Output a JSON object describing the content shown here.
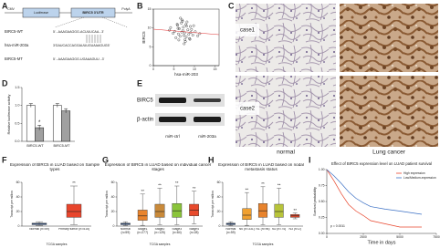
{
  "panel_labels": [
    "A",
    "B",
    "C",
    "D",
    "E",
    "F",
    "G",
    "H",
    "I"
  ],
  "construct": {
    "left": "CMV",
    "box1": "Luciferase",
    "box2": "BIRC5 3'UTR",
    "right": "PolyA",
    "rows": [
      {
        "name": "BIRC5-WT",
        "seq": "5'...AAAGAAGGG-ACUUUCAA...3'"
      },
      {
        "name": "hsa-miR-203a",
        "seq": "3'GAUCACCAGGAUUUGUAAAGUG5'"
      },
      {
        "name": "BIRC5-MT",
        "seq": "5'...AAAGAAGGG-UGAAAGUU...3'"
      }
    ]
  },
  "scatter": {
    "x_label": "hsa-miR-203",
    "y_label": "BIRC5",
    "xlim": [
      0,
      16
    ],
    "ylim": [
      0,
      15
    ],
    "xticks": [
      0,
      5,
      10,
      15
    ],
    "yticks": [
      0,
      5,
      10,
      15
    ],
    "x": [
      5.2,
      6.1,
      7.3,
      8.0,
      6.8,
      9.1,
      7.7,
      5.9,
      8.4,
      6.5,
      7.0,
      9.6,
      10.2,
      4.8,
      7.9,
      8.8,
      6.3,
      7.5,
      9.0,
      5.5,
      8.2,
      6.9,
      7.2,
      10.8,
      4.2,
      8.6,
      7.8,
      6.6,
      9.3,
      5.8,
      7.4,
      8.1,
      6.2,
      11.3,
      3.9,
      7.1,
      8.9,
      6.0,
      9.8,
      7.6
    ],
    "y": [
      9.1,
      8.4,
      10.2,
      7.6,
      11.3,
      8.8,
      6.9,
      10.7,
      9.5,
      7.8,
      12.1,
      8.1,
      9.0,
      8.6,
      10.9,
      7.2,
      9.8,
      5.8,
      10.4,
      7.4,
      11.6,
      8.9,
      9.3,
      7.9,
      10.1,
      8.3,
      6.4,
      12.6,
      9.6,
      11.0,
      8.0,
      10.5,
      6.8,
      8.5,
      9.4,
      11.8,
      7.0,
      9.9,
      10.6,
      8.7
    ]
  },
  "ihc": {
    "rows": [
      "case1",
      "case2"
    ],
    "cols": [
      "normal",
      "Lung cancer"
    ]
  },
  "luciferase": {
    "y_label": "Relative luciferase activity",
    "categories": [
      "BIRC5-WT",
      "BIRC5-MT"
    ],
    "ylim": [
      0,
      1.5
    ],
    "yticks": [
      {
        "value": 0,
        "label": "0.0"
      },
      {
        "value": 0.5,
        "label": "0.5"
      },
      {
        "value": 1,
        "label": "1.0"
      },
      {
        "value": 1.5,
        "label": "1.5"
      }
    ],
    "series": [
      {
        "color": "#ffffff",
        "values": [
          1.0,
          1.0
        ],
        "errors": [
          0.05,
          0.05
        ]
      },
      {
        "color": "#a0a0a0",
        "values": [
          0.38,
          0.85
        ],
        "errors": [
          0.07,
          0.06
        ]
      }
    ],
    "annotation": "*"
  },
  "blot": {
    "rows": [
      "BIRC5",
      "β-actin"
    ],
    "lanes": [
      "miR-ctrl",
      "miR-203a"
    ]
  },
  "boxplots": [
    {
      "title": "Expression of BIRC5 in LUAD based on Sample types",
      "y_label": "Transcript per million",
      "x_label": "TCGA samples",
      "ylim": [
        0,
        60
      ],
      "yticks": [
        0,
        20,
        40,
        60
      ],
      "categories": [
        "Normal (n=59)",
        "Primary tumor (n=515)"
      ],
      "colors": [
        "#3a6fc4",
        "#e8452c"
      ],
      "stats": [
        [
          1,
          2,
          3,
          4,
          6
        ],
        [
          2,
          12,
          20,
          30,
          55
        ]
      ],
      "annotations": [
        null,
        "**"
      ]
    },
    {
      "title": "Expression of BIRC5 in LUAD based on individual cancer stages",
      "y_label": "Transcript per million",
      "x_label": "TCGA samples",
      "ylim": [
        0,
        60
      ],
      "yticks": [
        0,
        20,
        40,
        60
      ],
      "categories": [
        "Normal (n=59)",
        "Stage1 (n=277)",
        "Stage2 (n=125)",
        "Stage3 (n=84)",
        "Stage4 (n=28)"
      ],
      "colors": [
        "#3a6fc4",
        "#e8832c",
        "#c98a3a",
        "#8ac43a",
        "#e84a2c"
      ],
      "stats": [
        [
          1,
          2,
          3,
          4,
          6
        ],
        [
          1,
          8,
          14,
          22,
          44
        ],
        [
          2,
          12,
          20,
          30,
          52
        ],
        [
          2,
          12,
          21,
          31,
          55
        ],
        [
          3,
          14,
          22,
          30,
          48
        ]
      ],
      "annotations": [
        null,
        "**",
        "**",
        "**",
        "**"
      ]
    },
    {
      "title": "Expression of BIRC5 in LUAD based on nodal metastasis status",
      "y_label": "Transcript per million",
      "x_label": "TCGA samples",
      "ylim": [
        0,
        60
      ],
      "yticks": [
        0,
        20,
        40,
        60
      ],
      "categories": [
        "Normal (n=59)",
        "N0 (n=331)",
        "N1 (n=96)",
        "N2 (n=74)",
        "N3 (n=2)"
      ],
      "colors": [
        "#3a6fc4",
        "#f0a030",
        "#e8832c",
        "#b8c43a",
        "#e84a2c"
      ],
      "stats": [
        [
          1,
          2,
          3,
          4,
          6
        ],
        [
          1,
          9,
          15,
          24,
          46
        ],
        [
          2,
          12,
          21,
          31,
          54
        ],
        [
          2,
          12,
          20,
          30,
          52
        ],
        [
          10,
          12,
          14,
          16,
          18
        ]
      ],
      "annotations": [
        null,
        "**",
        "**",
        "**",
        "**"
      ]
    }
  ],
  "survival": {
    "title": "Effect of BIRC5 expression level on LUAD patient survival",
    "y_label": "Survival probability",
    "x_label": "Time in days",
    "xlim": [
      0,
      7500
    ],
    "xticks": [
      0,
      2500,
      5000,
      7500
    ],
    "ylim": [
      0,
      1
    ],
    "yticks": [
      {
        "value": 0,
        "label": "0.00"
      },
      {
        "value": 0.25,
        "label": "0.25"
      },
      {
        "value": 0.5,
        "label": "0.50"
      },
      {
        "value": 0.75,
        "label": "0.75"
      },
      {
        "value": 1,
        "label": "1.00"
      }
    ],
    "x": [
      0,
      500,
      1000,
      1500,
      2000,
      2500,
      3000,
      4000,
      5000,
      6500
    ],
    "series": [
      {
        "name": "High expression",
        "color": "#e8452c",
        "y": [
          1,
          0.82,
          0.62,
          0.45,
          0.35,
          0.28,
          0.2,
          0.15,
          0.1,
          0.1
        ]
      },
      {
        "name": "Low/Medium-expression",
        "color": "#3a6fc4",
        "y": [
          1,
          0.9,
          0.78,
          0.65,
          0.55,
          0.48,
          0.42,
          0.38,
          0.35,
          0.3
        ]
      }
    ],
    "annotation": "p = 0.0011"
  }
}
